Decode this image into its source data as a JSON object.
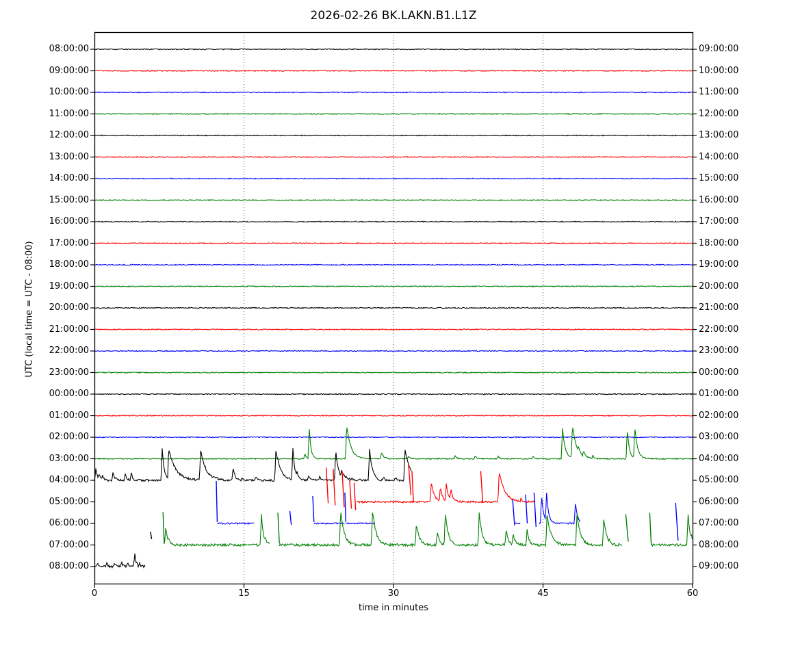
{
  "figure": {
    "title": "2026-02-26 BK.LAKN.B1.L1Z",
    "xlabel": "time in minutes",
    "ylabel": "UTC (local time = UTC - 08:00)"
  },
  "chart_data": {
    "type": "line",
    "subtype": "seismogram-helicorder-dayplot",
    "title": "2026-02-26 BK.LAKN.B1.L1Z",
    "xlabel": "time in minutes",
    "ylabel": "UTC (local time = UTC - 08:00)",
    "x_range": [
      0,
      60
    ],
    "x_ticks": [
      0,
      15,
      30,
      45,
      60
    ],
    "grid": "vertical dotted gridlines at 15, 30, 45 minutes",
    "legend": "none",
    "minutes_per_row": 60,
    "utc_to_local_offset": "-08:00",
    "color_cycle": [
      "#000000",
      "#ff0000",
      "#0000ff",
      "#008000"
    ],
    "encoding_notes": {
      "segments": "[start_minute, end_minute, noise_amplitude_px] pieces of visible trace on the row baseline",
      "spikes": "[minute, peak_height_px_above_baseline, decay_tau_px] transient events on the trace",
      "strokes": "[minute_start, dy_start_px, minute_end, dy_end_px] steep isolated line strokes relative to baseline (positive = up)"
    },
    "rows": [
      {
        "utc_left": "08:00:00",
        "local_right": "09:00:00",
        "color": "#000000",
        "segments": [
          [
            0,
            60,
            0.7
          ]
        ],
        "spikes": [],
        "strokes": []
      },
      {
        "utc_left": "09:00:00",
        "local_right": "10:00:00",
        "color": "#ff0000",
        "segments": [
          [
            0,
            60,
            0.7
          ]
        ],
        "spikes": [],
        "strokes": []
      },
      {
        "utc_left": "10:00:00",
        "local_right": "11:00:00",
        "color": "#0000ff",
        "segments": [
          [
            0,
            60,
            0.7
          ]
        ],
        "spikes": [],
        "strokes": []
      },
      {
        "utc_left": "11:00:00",
        "local_right": "12:00:00",
        "color": "#008000",
        "segments": [
          [
            0,
            60,
            0.7
          ]
        ],
        "spikes": [],
        "strokes": []
      },
      {
        "utc_left": "12:00:00",
        "local_right": "13:00:00",
        "color": "#000000",
        "segments": [
          [
            0,
            60,
            0.7
          ]
        ],
        "spikes": [],
        "strokes": []
      },
      {
        "utc_left": "13:00:00",
        "local_right": "14:00:00",
        "color": "#ff0000",
        "segments": [
          [
            0,
            60,
            0.7
          ]
        ],
        "spikes": [],
        "strokes": []
      },
      {
        "utc_left": "14:00:00",
        "local_right": "15:00:00",
        "color": "#0000ff",
        "segments": [
          [
            0,
            60,
            0.7
          ]
        ],
        "spikes": [],
        "strokes": []
      },
      {
        "utc_left": "15:00:00",
        "local_right": "16:00:00",
        "color": "#008000",
        "segments": [
          [
            0,
            60,
            0.7
          ]
        ],
        "spikes": [],
        "strokes": []
      },
      {
        "utc_left": "16:00:00",
        "local_right": "17:00:00",
        "color": "#000000",
        "segments": [
          [
            0,
            60,
            0.7
          ]
        ],
        "spikes": [],
        "strokes": []
      },
      {
        "utc_left": "17:00:00",
        "local_right": "18:00:00",
        "color": "#ff0000",
        "segments": [
          [
            0,
            60,
            0.7
          ]
        ],
        "spikes": [],
        "strokes": []
      },
      {
        "utc_left": "18:00:00",
        "local_right": "19:00:00",
        "color": "#0000ff",
        "segments": [
          [
            0,
            60,
            0.7
          ]
        ],
        "spikes": [],
        "strokes": []
      },
      {
        "utc_left": "19:00:00",
        "local_right": "20:00:00",
        "color": "#008000",
        "segments": [
          [
            0,
            60,
            0.7
          ]
        ],
        "spikes": [],
        "strokes": []
      },
      {
        "utc_left": "20:00:00",
        "local_right": "21:00:00",
        "color": "#000000",
        "segments": [
          [
            0,
            60,
            0.7
          ]
        ],
        "spikes": [],
        "strokes": []
      },
      {
        "utc_left": "21:00:00",
        "local_right": "22:00:00",
        "color": "#ff0000",
        "segments": [
          [
            0,
            60,
            0.7
          ]
        ],
        "spikes": [],
        "strokes": []
      },
      {
        "utc_left": "22:00:00",
        "local_right": "23:00:00",
        "color": "#0000ff",
        "segments": [
          [
            0,
            60,
            0.7
          ]
        ],
        "spikes": [],
        "strokes": []
      },
      {
        "utc_left": "23:00:00",
        "local_right": "00:00:00",
        "color": "#008000",
        "segments": [
          [
            0,
            60,
            0.7
          ]
        ],
        "spikes": [],
        "strokes": []
      },
      {
        "utc_left": "00:00:00",
        "local_right": "01:00:00",
        "color": "#000000",
        "segments": [
          [
            0,
            60,
            0.7
          ]
        ],
        "spikes": [],
        "strokes": []
      },
      {
        "utc_left": "01:00:00",
        "local_right": "02:00:00",
        "color": "#ff0000",
        "segments": [
          [
            0,
            60,
            0.7
          ]
        ],
        "spikes": [],
        "strokes": []
      },
      {
        "utc_left": "02:00:00",
        "local_right": "03:00:00",
        "color": "#0000ff",
        "segments": [
          [
            0,
            60,
            0.7
          ]
        ],
        "spikes": [],
        "strokes": []
      },
      {
        "utc_left": "03:00:00",
        "local_right": "04:00:00",
        "color": "#008000",
        "segments": [
          [
            0,
            60,
            0.8
          ]
        ],
        "spikes": [
          [
            21.1,
            8,
            2
          ],
          [
            21.55,
            45,
            2.5
          ],
          [
            25.3,
            50,
            6
          ],
          [
            28.8,
            10,
            3
          ],
          [
            31.5,
            4,
            2
          ],
          [
            36.2,
            5,
            2
          ],
          [
            38.2,
            5,
            2
          ],
          [
            40.5,
            4,
            2
          ],
          [
            44.0,
            4,
            2
          ],
          [
            46.95,
            46,
            4
          ],
          [
            47.95,
            50,
            6
          ],
          [
            48.55,
            20,
            4
          ],
          [
            49.05,
            12,
            4
          ],
          [
            50.0,
            5,
            2
          ],
          [
            53.45,
            44,
            3
          ],
          [
            54.2,
            48,
            4
          ]
        ],
        "strokes": []
      },
      {
        "utc_left": "04:00:00",
        "local_right": "05:00:00",
        "color": "#000000",
        "segments": [
          [
            0,
            31.85,
            1.6
          ]
        ],
        "spikes": [
          [
            0.15,
            18,
            2
          ],
          [
            0.45,
            12,
            2
          ],
          [
            0.8,
            8,
            2
          ],
          [
            1.85,
            12,
            3
          ],
          [
            3.1,
            10,
            2
          ],
          [
            3.7,
            10,
            2
          ],
          [
            6.8,
            47,
            3
          ],
          [
            7.45,
            47,
            10
          ],
          [
            9.0,
            5,
            2
          ],
          [
            10.65,
            45,
            8
          ],
          [
            12.3,
            5,
            2
          ],
          [
            13.9,
            18,
            3
          ],
          [
            14.8,
            4,
            2
          ],
          [
            16.2,
            5,
            2
          ],
          [
            18.2,
            45,
            7
          ],
          [
            19.9,
            48,
            3
          ],
          [
            20.3,
            14,
            3
          ],
          [
            21.5,
            6,
            2
          ],
          [
            22.6,
            5,
            2
          ],
          [
            24.2,
            45,
            4
          ],
          [
            24.75,
            15,
            6
          ],
          [
            25.8,
            4,
            2
          ],
          [
            27.6,
            47,
            4
          ],
          [
            29.0,
            5,
            2
          ],
          [
            30.2,
            4,
            2
          ],
          [
            31.15,
            45,
            8
          ]
        ],
        "strokes": []
      },
      {
        "utc_left": "05:00:00",
        "local_right": "06:00:00",
        "color": "#ff0000",
        "segments": [
          [
            26.3,
            44.25,
            1.4
          ]
        ],
        "spikes": [
          [
            33.8,
            30,
            4
          ],
          [
            34.7,
            22,
            3
          ],
          [
            35.3,
            28,
            3
          ],
          [
            35.75,
            20,
            3
          ],
          [
            40.6,
            45,
            8
          ],
          [
            41.6,
            6,
            2
          ],
          [
            42.8,
            5,
            2
          ]
        ],
        "strokes": [
          [
            23.25,
            50,
            23.45,
            -2
          ],
          [
            23.95,
            48,
            24.15,
            -5
          ],
          [
            24.85,
            45,
            25.05,
            -8
          ],
          [
            25.6,
            32,
            25.78,
            -10
          ],
          [
            26.05,
            28,
            26.2,
            -12
          ],
          [
            31.5,
            55,
            31.75,
            10
          ],
          [
            31.85,
            45,
            32.0,
            0
          ],
          [
            38.75,
            45,
            38.95,
            0
          ]
        ]
      },
      {
        "utc_left": "06:00:00",
        "local_right": "07:00:00",
        "color": "#0000ff",
        "segments": [
          [
            12.3,
            16.05,
            1.1
          ],
          [
            22.0,
            25.1,
            1.1
          ],
          [
            25.2,
            28.1,
            1.1
          ],
          [
            42.15,
            42.7,
            1.1
          ],
          [
            44.6,
            48.75,
            1.2
          ]
        ],
        "spikes": [
          [
            44.85,
            42,
            3
          ],
          [
            45.35,
            45,
            3
          ],
          [
            48.25,
            32,
            3
          ]
        ],
        "strokes": [
          [
            12.22,
            62,
            12.32,
            2
          ],
          [
            19.6,
            18,
            19.75,
            -2
          ],
          [
            21.9,
            40,
            22.02,
            2
          ],
          [
            25.12,
            45,
            25.22,
            2
          ],
          [
            41.95,
            35,
            42.15,
            -3
          ],
          [
            43.25,
            42,
            43.42,
            0
          ],
          [
            44.1,
            45,
            44.3,
            -5
          ],
          [
            58.3,
            30,
            58.55,
            -25
          ]
        ]
      },
      {
        "utc_left": "07:00:00",
        "local_right": "08:00:00",
        "color": "#008000",
        "segments": [
          [
            7.0,
            17.6,
            1.8
          ],
          [
            18.55,
            52.9,
            1.8
          ],
          [
            55.85,
            60,
            1.8
          ]
        ],
        "spikes": [
          [
            7.15,
            26,
            2.5
          ],
          [
            7.45,
            12,
            2
          ],
          [
            16.75,
            45,
            3
          ],
          [
            17.1,
            12,
            3
          ],
          [
            24.7,
            52,
            5
          ],
          [
            27.9,
            52,
            5
          ],
          [
            32.3,
            32,
            4
          ],
          [
            34.4,
            20,
            3
          ],
          [
            35.2,
            50,
            4
          ],
          [
            38.6,
            48,
            4
          ],
          [
            41.3,
            25,
            3
          ],
          [
            42.0,
            18,
            3
          ],
          [
            43.4,
            22,
            3
          ],
          [
            45.4,
            45,
            6
          ],
          [
            48.4,
            48,
            5
          ],
          [
            51.1,
            40,
            4
          ],
          [
            51.6,
            10,
            3
          ],
          [
            59.55,
            45,
            3
          ],
          [
            59.85,
            18,
            3
          ]
        ],
        "strokes": [
          [
            6.88,
            48,
            7.0,
            2
          ],
          [
            18.4,
            47,
            18.55,
            2
          ],
          [
            53.3,
            45,
            53.55,
            5
          ],
          [
            55.7,
            47,
            55.85,
            2
          ]
        ]
      },
      {
        "utc_left": "08:00:00",
        "local_right": "09:00:00",
        "color": "#000000",
        "segments": [
          [
            0,
            5.1,
            2.0
          ]
        ],
        "spikes": [
          [
            0.3,
            5,
            2
          ],
          [
            1.2,
            6,
            2
          ],
          [
            2.0,
            5,
            2
          ],
          [
            2.7,
            7,
            2
          ],
          [
            3.3,
            5,
            2
          ],
          [
            4.05,
            18,
            2
          ],
          [
            4.5,
            6,
            2
          ]
        ],
        "strokes": [
          [
            5.62,
            51,
            5.74,
            40
          ]
        ]
      }
    ]
  }
}
